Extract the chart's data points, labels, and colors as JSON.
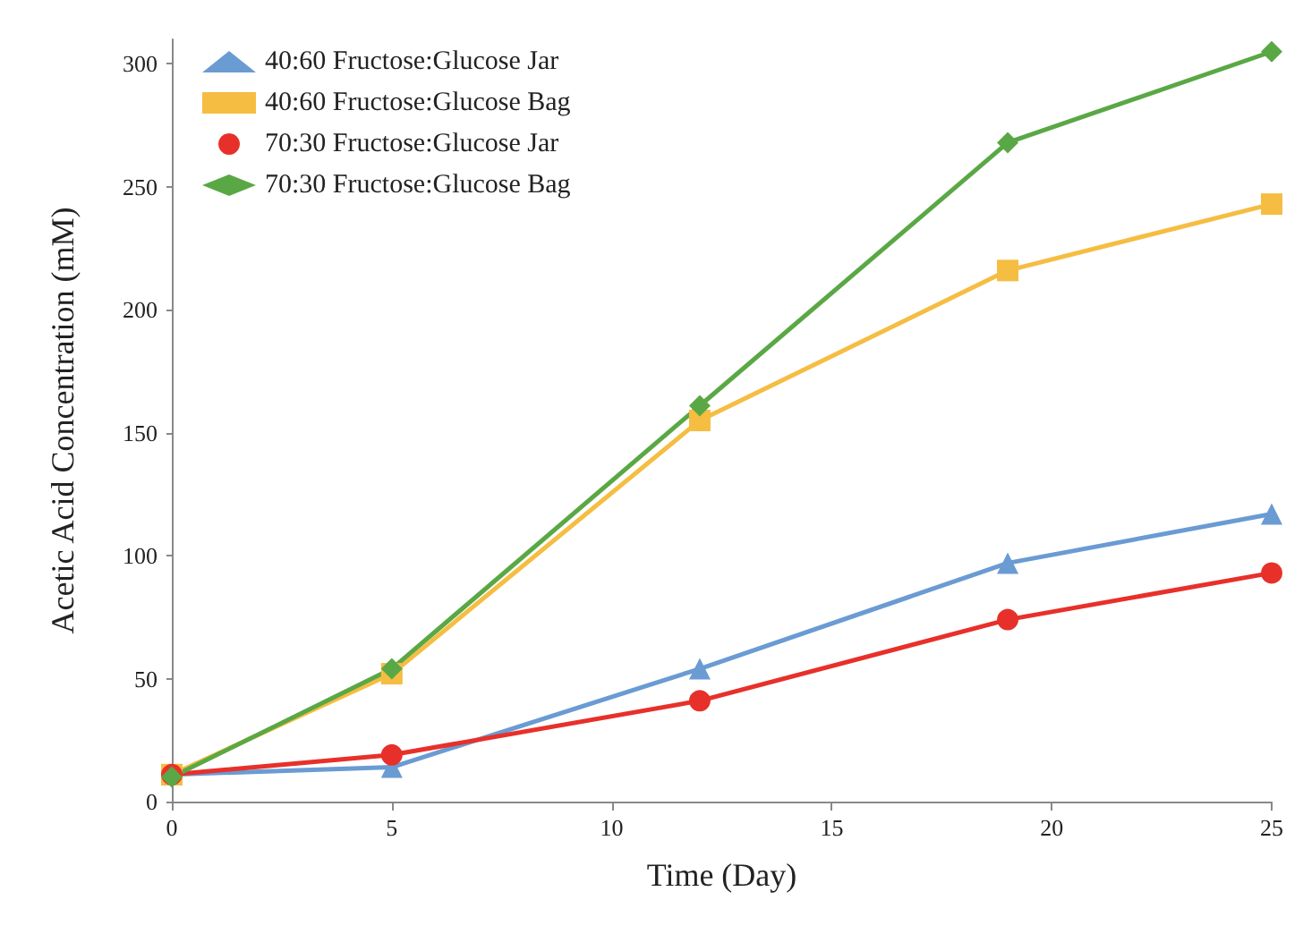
{
  "chart_data": {
    "type": "line",
    "xlabel": "Time (Day)",
    "ylabel": "Acetic Acid Concentration (mM)",
    "x": [
      0,
      5,
      12,
      19,
      25
    ],
    "series": [
      {
        "name": "40:60 Fructose:Glucose Jar",
        "color": "#6a9bd3",
        "marker": "triangle",
        "values": [
          11,
          14,
          54,
          97,
          117
        ]
      },
      {
        "name": "40:60 Fructose:Glucose Bag",
        "color": "#f5bd42",
        "marker": "square",
        "values": [
          11,
          52,
          155,
          216,
          243
        ]
      },
      {
        "name": "70:30 Fructose:Glucose Jar",
        "color": "#e8302a",
        "marker": "circle",
        "values": [
          11,
          19,
          41,
          74,
          93
        ]
      },
      {
        "name": "70:30 Fructose:Glucose Bag",
        "color": "#5aa845",
        "marker": "diamond",
        "values": [
          10,
          54,
          161,
          268,
          305
        ]
      }
    ],
    "xlim": [
      0,
      25
    ],
    "xticks": [
      0,
      5,
      10,
      15,
      20,
      25
    ],
    "ylim": [
      0,
      310
    ],
    "yticks": [
      0,
      50,
      100,
      150,
      200,
      250,
      300
    ],
    "grid": false,
    "legend": "top left",
    "line_style": "solid"
  }
}
